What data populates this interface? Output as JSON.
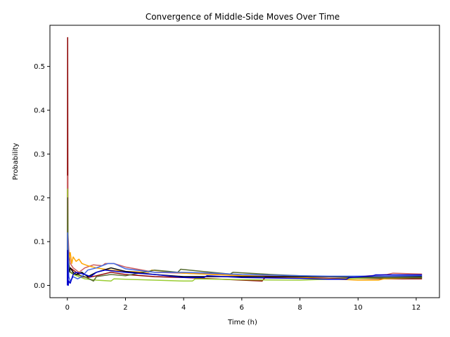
{
  "chart_data": {
    "type": "line",
    "title": "Convergence of Middle-Side Moves Over Time",
    "xlabel": "Time (h)",
    "ylabel": "Probability",
    "xlim": [
      -0.6,
      12.8
    ],
    "ylim": [
      -0.028,
      0.594
    ],
    "xticks": [
      0,
      2,
      4,
      6,
      8,
      10,
      12
    ],
    "yticks": [
      0.0,
      0.1,
      0.2,
      0.3,
      0.4,
      0.5
    ],
    "ytick_labels": [
      "0.0",
      "0.1",
      "0.2",
      "0.3",
      "0.4",
      "0.5"
    ],
    "grid": false,
    "legend": false,
    "series": [
      {
        "color": "#8b0000",
        "points": [
          [
            0,
            0.0
          ],
          [
            0.01,
            0.566
          ],
          [
            0.02,
            0.05
          ],
          [
            0.05,
            0.03
          ],
          [
            0.1,
            0.04
          ],
          [
            0.2,
            0.035
          ],
          [
            0.3,
            0.03
          ],
          [
            0.5,
            0.02
          ],
          [
            0.7,
            0.018
          ],
          [
            1.0,
            0.022
          ],
          [
            1.5,
            0.03
          ],
          [
            2.0,
            0.025
          ],
          [
            3.0,
            0.02
          ],
          [
            4.0,
            0.018
          ],
          [
            5.0,
            0.015
          ],
          [
            6.0,
            0.012
          ],
          [
            6.7,
            0.01
          ],
          [
            6.8,
            0.018
          ],
          [
            8.0,
            0.018
          ],
          [
            9.0,
            0.016
          ],
          [
            10.0,
            0.016
          ],
          [
            11.0,
            0.015
          ],
          [
            12.2,
            0.015
          ]
        ]
      },
      {
        "color": "#cd5c5c",
        "points": [
          [
            0,
            0.0
          ],
          [
            0.01,
            0.25
          ],
          [
            0.02,
            0.12
          ],
          [
            0.05,
            0.08
          ],
          [
            0.1,
            0.05
          ],
          [
            0.2,
            0.04
          ],
          [
            0.4,
            0.03
          ],
          [
            0.6,
            0.04
          ],
          [
            0.9,
            0.047
          ],
          [
            1.2,
            0.045
          ],
          [
            1.3,
            0.05
          ],
          [
            1.6,
            0.05
          ],
          [
            2.0,
            0.042
          ],
          [
            3.0,
            0.03
          ],
          [
            4.0,
            0.028
          ],
          [
            5.0,
            0.026
          ],
          [
            6.0,
            0.022
          ],
          [
            8.0,
            0.02
          ],
          [
            9.0,
            0.02
          ],
          [
            10.0,
            0.02
          ],
          [
            11.0,
            0.025
          ],
          [
            11.2,
            0.028
          ],
          [
            12.2,
            0.026
          ]
        ]
      },
      {
        "color": "#ffa500",
        "points": [
          [
            0,
            0.0
          ],
          [
            0.01,
            0.1
          ],
          [
            0.05,
            0.06
          ],
          [
            0.1,
            0.075
          ],
          [
            0.15,
            0.05
          ],
          [
            0.2,
            0.065
          ],
          [
            0.3,
            0.055
          ],
          [
            0.4,
            0.06
          ],
          [
            0.5,
            0.05
          ],
          [
            0.7,
            0.045
          ],
          [
            1.0,
            0.04
          ],
          [
            1.5,
            0.035
          ],
          [
            2.0,
            0.032
          ],
          [
            2.8,
            0.03
          ],
          [
            2.9,
            0.035
          ],
          [
            4.0,
            0.028
          ],
          [
            5.0,
            0.025
          ],
          [
            6.0,
            0.022
          ],
          [
            8.0,
            0.018
          ],
          [
            9.0,
            0.015
          ],
          [
            10.0,
            0.012
          ],
          [
            10.7,
            0.012
          ],
          [
            10.9,
            0.015
          ],
          [
            12.2,
            0.018
          ]
        ]
      },
      {
        "color": "#9acd32",
        "points": [
          [
            0,
            0.0
          ],
          [
            0.01,
            0.22
          ],
          [
            0.02,
            0.1
          ],
          [
            0.05,
            0.05
          ],
          [
            0.1,
            0.03
          ],
          [
            0.2,
            0.025
          ],
          [
            0.4,
            0.02
          ],
          [
            0.6,
            0.015
          ],
          [
            1.0,
            0.012
          ],
          [
            1.5,
            0.01
          ],
          [
            1.6,
            0.015
          ],
          [
            2.0,
            0.014
          ],
          [
            3.0,
            0.012
          ],
          [
            4.0,
            0.01
          ],
          [
            4.3,
            0.01
          ],
          [
            4.4,
            0.015
          ],
          [
            6.0,
            0.013
          ],
          [
            8.0,
            0.012
          ],
          [
            9.0,
            0.014
          ],
          [
            10.0,
            0.016
          ],
          [
            11.0,
            0.017
          ],
          [
            12.2,
            0.018
          ]
        ]
      },
      {
        "color": "#556b2f",
        "points": [
          [
            0,
            0.0
          ],
          [
            0.01,
            0.2
          ],
          [
            0.02,
            0.1
          ],
          [
            0.05,
            0.05
          ],
          [
            0.1,
            0.03
          ],
          [
            0.3,
            0.025
          ],
          [
            0.6,
            0.02
          ],
          [
            0.9,
            0.01
          ],
          [
            1.0,
            0.02
          ],
          [
            1.5,
            0.025
          ],
          [
            2.0,
            0.022
          ],
          [
            3.0,
            0.035
          ],
          [
            3.5,
            0.032
          ],
          [
            3.8,
            0.03
          ],
          [
            3.9,
            0.037
          ],
          [
            4.5,
            0.033
          ],
          [
            5.6,
            0.026
          ],
          [
            5.7,
            0.03
          ],
          [
            7.0,
            0.025
          ],
          [
            8.0,
            0.022
          ],
          [
            9.0,
            0.02
          ],
          [
            10.0,
            0.018
          ],
          [
            11.0,
            0.017
          ],
          [
            12.2,
            0.017
          ]
        ]
      },
      {
        "color": "#000000",
        "points": [
          [
            0,
            0.0
          ],
          [
            0.01,
            0.11
          ],
          [
            0.05,
            0.03
          ],
          [
            0.1,
            0.04
          ],
          [
            0.2,
            0.03
          ],
          [
            0.3,
            0.025
          ],
          [
            0.5,
            0.03
          ],
          [
            0.7,
            0.02
          ],
          [
            1.0,
            0.03
          ],
          [
            1.5,
            0.04
          ],
          [
            2.0,
            0.032
          ],
          [
            3.0,
            0.025
          ],
          [
            4.0,
            0.02
          ],
          [
            5.0,
            0.02
          ],
          [
            6.0,
            0.02
          ],
          [
            8.0,
            0.02
          ],
          [
            10.0,
            0.02
          ],
          [
            12.2,
            0.02
          ]
        ]
      },
      {
        "color": "#4169e1",
        "points": [
          [
            0,
            0.0
          ],
          [
            0.01,
            0.12
          ],
          [
            0.05,
            0.02
          ],
          [
            0.1,
            0.01
          ],
          [
            0.2,
            0.02
          ],
          [
            0.35,
            0.015
          ],
          [
            0.5,
            0.02
          ],
          [
            0.7,
            0.035
          ],
          [
            1.0,
            0.04
          ],
          [
            1.4,
            0.05
          ],
          [
            1.6,
            0.05
          ],
          [
            2.0,
            0.038
          ],
          [
            3.0,
            0.03
          ],
          [
            4.0,
            0.03
          ],
          [
            5.0,
            0.028
          ],
          [
            6.0,
            0.025
          ],
          [
            8.0,
            0.022
          ],
          [
            9.0,
            0.021
          ],
          [
            10.0,
            0.021
          ],
          [
            11.0,
            0.021
          ],
          [
            12.2,
            0.022
          ]
        ]
      },
      {
        "color": "#0000cd",
        "points": [
          [
            0,
            0.0
          ],
          [
            0.01,
            0.08
          ],
          [
            0.03,
            0.0
          ],
          [
            0.05,
            0.01
          ],
          [
            0.1,
            0.005
          ],
          [
            0.2,
            0.025
          ],
          [
            0.3,
            0.03
          ],
          [
            0.6,
            0.025
          ],
          [
            0.8,
            0.02
          ],
          [
            1.0,
            0.03
          ],
          [
            1.3,
            0.035
          ],
          [
            2.0,
            0.03
          ],
          [
            3.0,
            0.025
          ],
          [
            4.0,
            0.018
          ],
          [
            4.7,
            0.018
          ],
          [
            4.8,
            0.022
          ],
          [
            6.0,
            0.018
          ],
          [
            8.0,
            0.016
          ],
          [
            9.0,
            0.014
          ],
          [
            9.6,
            0.014
          ],
          [
            9.7,
            0.018
          ],
          [
            10.5,
            0.022
          ],
          [
            10.6,
            0.024
          ],
          [
            12.2,
            0.024
          ]
        ]
      }
    ]
  }
}
